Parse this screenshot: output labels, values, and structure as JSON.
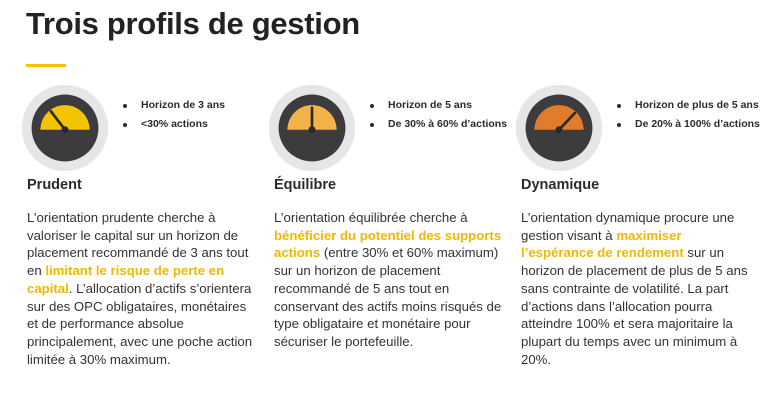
{
  "title": "Trois profils de gestion",
  "colors": {
    "accent": "#f5c400",
    "highlight": "#f2b705",
    "gauge_ring": "#e6e6e6",
    "gauge_dark": "#3c3c3e",
    "prudent_fill": "#f5c400",
    "equilibre_fill": "#f3b34a",
    "dynamique_fill": "#e07c2a"
  },
  "profiles": [
    {
      "name": "Prudent",
      "icon": "gauge-low-icon",
      "bullets": [
        "Horizon de 3 ans",
        "<30% actions"
      ],
      "desc": {
        "t1": "L’orientation prudente cherche à valoriser le capital sur un horizon de placement recommandé de 3 ans tout en ",
        "h1": "limitant le risque de perte en capital",
        "t2": ". L’allocation d’actifs s’orientera sur des OPC obligataires, monétaires et de performance absolue principalement, avec une poche action limitée à 30% maximum."
      }
    },
    {
      "name": "Équilibre",
      "icon": "gauge-medium-icon",
      "bullets": [
        "Horizon de 5 ans",
        "De 30% à 60%  d’actions"
      ],
      "desc": {
        "t1": "L’orientation équilibrée cherche à ",
        "h1": "bénéficier du potentiel des supports actions",
        "t2": " (entre 30% et 60% maximum) sur un horizon de placement recommandé de 5 ans tout en conservant des actifs moins risqués de type obligataire et monétaire pour sécuriser le portefeuille."
      }
    },
    {
      "name": "Dynamique",
      "icon": "gauge-high-icon",
      "bullets": [
        "Horizon de plus de 5 ans",
        "De 20% à 100%  d’actions"
      ],
      "desc": {
        "t1": "L’orientation dynamique procure une gestion visant à ",
        "h1": "maximiser l’espérance de rendement",
        "t2": " sur un horizon de placement de plus de 5 ans sans contrainte de volatilité. La part d’actions dans l’allocation pourra atteindre 100% et sera majoritaire la plupart du temps avec un minimum à 20%."
      }
    }
  ]
}
